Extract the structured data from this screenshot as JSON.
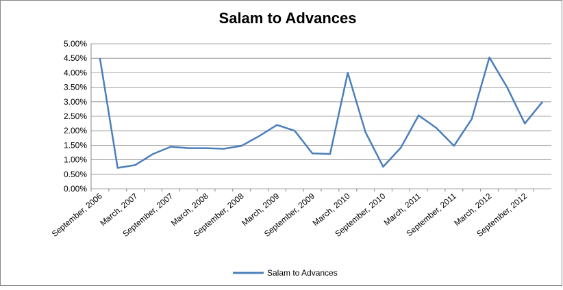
{
  "chart_data": {
    "type": "line",
    "title": "Salam to Advances",
    "categories": [
      "September, 2006",
      null,
      "March, 2007",
      null,
      "September, 2007",
      null,
      "March, 2008",
      null,
      "September, 2008",
      null,
      "March, 2009",
      null,
      "September, 2009",
      null,
      "March, 2010",
      null,
      "September, 2010",
      null,
      "March, 2011",
      null,
      "September, 2011",
      null,
      "March, 2012",
      null,
      "September, 2012",
      null
    ],
    "series": [
      {
        "name": "Salam to Advances",
        "color": "#4a7ebb",
        "values": [
          4.5,
          0.72,
          0.82,
          1.2,
          1.45,
          1.4,
          1.4,
          1.38,
          1.48,
          1.82,
          2.2,
          2.0,
          1.22,
          1.2,
          4.0,
          1.95,
          0.76,
          1.42,
          2.53,
          2.1,
          1.48,
          2.4,
          4.53,
          3.5,
          2.25,
          3.0
        ]
      }
    ],
    "ylim": [
      0,
      5
    ],
    "yticks": [
      {
        "value": 0,
        "label": "0.00%"
      },
      {
        "value": 0.5,
        "label": "0.50%"
      },
      {
        "value": 1,
        "label": "1.00%"
      },
      {
        "value": 1.5,
        "label": "1.50%"
      },
      {
        "value": 2,
        "label": "2.00%"
      },
      {
        "value": 2.5,
        "label": "2.50%"
      },
      {
        "value": 3,
        "label": "3.00%"
      },
      {
        "value": 3.5,
        "label": "3.50%"
      },
      {
        "value": 4,
        "label": "4.00%"
      },
      {
        "value": 4.5,
        "label": "4.50%"
      },
      {
        "value": 5,
        "label": "5.00%"
      }
    ],
    "grid": true,
    "legend": "bottom"
  }
}
